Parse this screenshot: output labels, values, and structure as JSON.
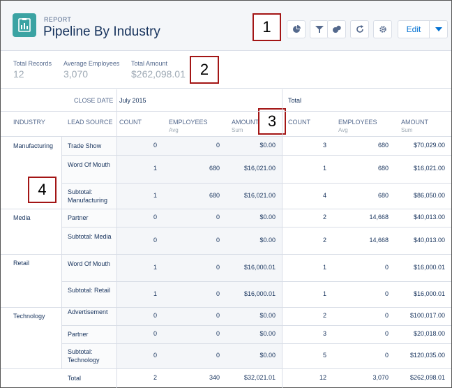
{
  "header": {
    "eyebrow": "REPORT",
    "title": "Pipeline By Industry",
    "edit_label": "Edit",
    "icons": [
      "report-icon",
      "chart-icon",
      "filter-icon",
      "bubble-icon",
      "refresh-icon",
      "settings-icon",
      "chevron-down-icon"
    ]
  },
  "callouts": [
    "1",
    "2",
    "3",
    "4"
  ],
  "summary": {
    "total_records_label": "Total Records",
    "total_records": "12",
    "avg_employees_label": "Average Employees",
    "avg_employees": "3,070",
    "total_amount_label": "Total Amount",
    "total_amount": "$262,098.01"
  },
  "table": {
    "close_date_label": "CLOSE DATE",
    "period_label": "July 2015",
    "total_label": "Total",
    "industry_label": "INDUSTRY",
    "lead_source_label": "LEAD SOURCE",
    "count_label": "COUNT",
    "employees_label": "EMPLOYEES",
    "employees_sub": "Avg",
    "amount_label": "AMOUNT",
    "amount_sub": "Sum",
    "rows": [
      {
        "industry": "Manufacturing",
        "source": "Trade Show",
        "c1": "0",
        "e1": "0",
        "a1": "$0.00",
        "c2": "3",
        "e2": "680",
        "a2": "$70,029.00"
      },
      {
        "industry": "",
        "source": "Word Of Mouth",
        "c1": "1",
        "e1": "680",
        "a1": "$16,021.00",
        "c2": "1",
        "e2": "680",
        "a2": "$16,021.00"
      },
      {
        "industry": "",
        "source": "Subtotal: Manufacturing",
        "c1": "1",
        "e1": "680",
        "a1": "$16,021.00",
        "c2": "4",
        "e2": "680",
        "a2": "$86,050.00"
      },
      {
        "industry": "Media",
        "source": "Partner",
        "c1": "0",
        "e1": "0",
        "a1": "$0.00",
        "c2": "2",
        "e2": "14,668",
        "a2": "$40,013.00"
      },
      {
        "industry": "",
        "source": "Subtotal: Media",
        "c1": "0",
        "e1": "0",
        "a1": "$0.00",
        "c2": "2",
        "e2": "14,668",
        "a2": "$40,013.00"
      },
      {
        "industry": "Retail",
        "source": "Word Of Mouth",
        "c1": "1",
        "e1": "0",
        "a1": "$16,000.01",
        "c2": "1",
        "e2": "0",
        "a2": "$16,000.01"
      },
      {
        "industry": "",
        "source": "Subtotal: Retail",
        "c1": "1",
        "e1": "0",
        "a1": "$16,000.01",
        "c2": "1",
        "e2": "0",
        "a2": "$16,000.01"
      },
      {
        "industry": "Technology",
        "source": "Advertisement",
        "c1": "0",
        "e1": "0",
        "a1": "$0.00",
        "c2": "2",
        "e2": "0",
        "a2": "$100,017.00"
      },
      {
        "industry": "",
        "source": "Partner",
        "c1": "0",
        "e1": "0",
        "a1": "$0.00",
        "c2": "3",
        "e2": "0",
        "a2": "$20,018.00"
      },
      {
        "industry": "",
        "source": "Subtotal: Technology",
        "c1": "0",
        "e1": "0",
        "a1": "$0.00",
        "c2": "5",
        "e2": "0",
        "a2": "$120,035.00"
      },
      {
        "industry": "",
        "source": "Total",
        "c1": "2",
        "e1": "340",
        "a1": "$32,021.01",
        "c2": "12",
        "e2": "3,070",
        "a2": "$262,098.01"
      }
    ]
  }
}
